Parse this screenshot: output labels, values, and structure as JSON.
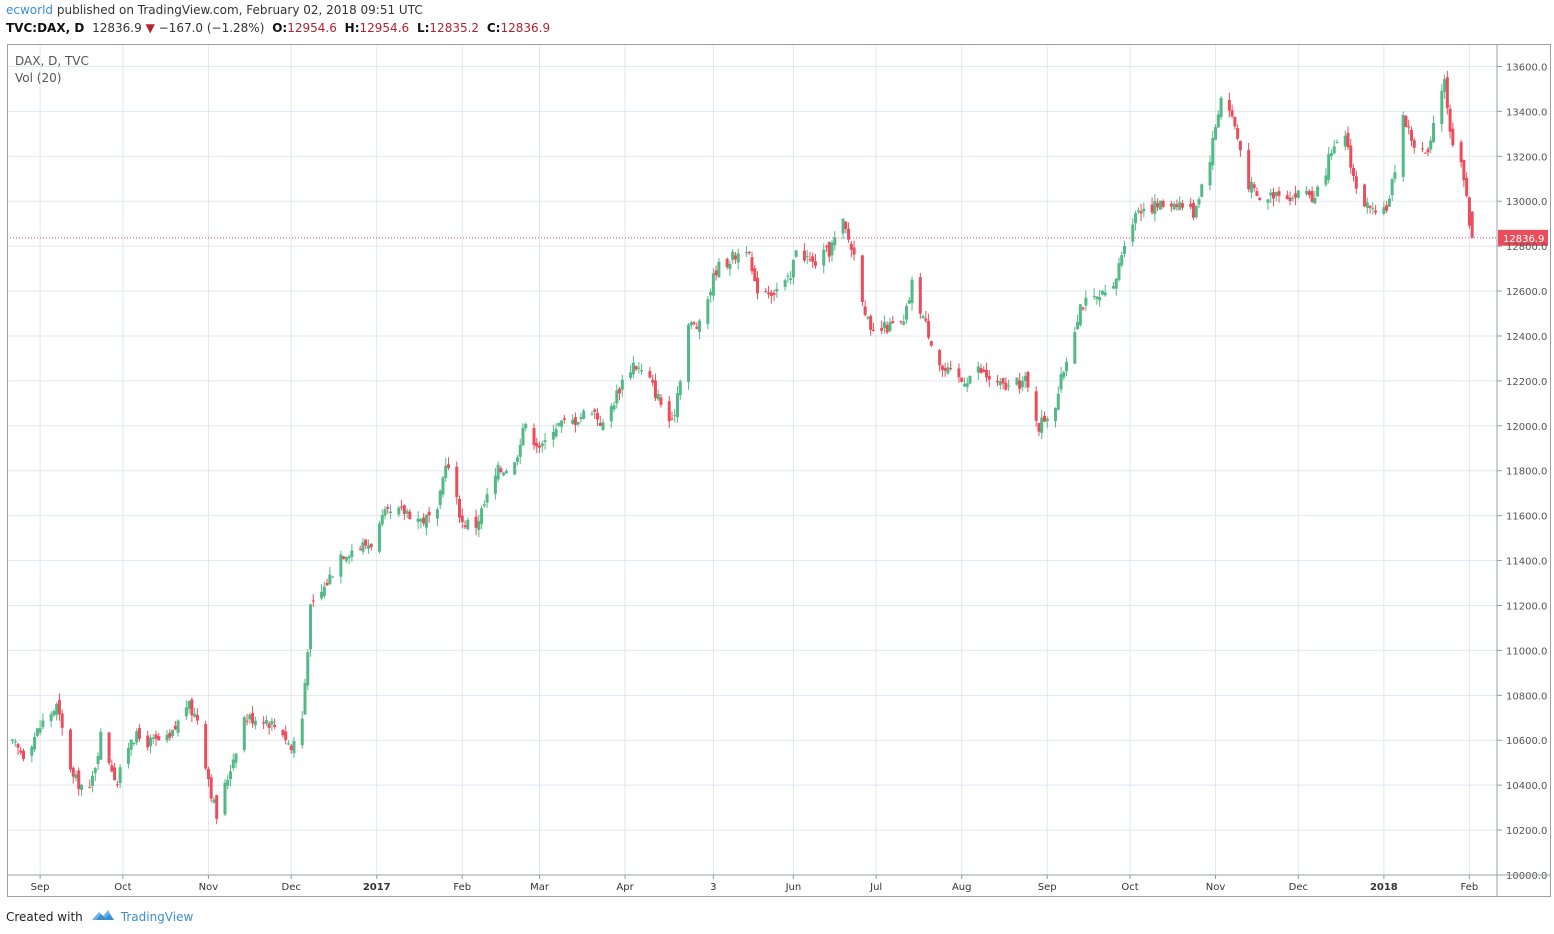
{
  "header": {
    "author": "ecworld",
    "published_text": "published on TradingView.com, February 02, 2018 09:51 UTC"
  },
  "symbol_line": {
    "symbol": "TVC:DAX, D",
    "last": "12836.9",
    "change": "−167.0 (−1.28%)",
    "o_label": "O:",
    "o_value": "12954.6",
    "h_label": "H:",
    "h_value": "12954.6",
    "l_label": "L:",
    "l_value": "12835.2",
    "c_label": "C:",
    "c_value": "12836.9"
  },
  "legend": {
    "series_label": "DAX, D, TVC",
    "volume_label": "Vol (20)"
  },
  "price_tag": "12836.9",
  "footer": {
    "created_with": "Created with",
    "brand": "TradingView"
  },
  "colors": {
    "up": "#53b987",
    "down": "#eb4d5c",
    "grid": "#e0e8f0",
    "axis_text": "#555555",
    "price_line": "#eb4d5c",
    "brand": "#3a8fd1"
  },
  "chart_data": {
    "type": "candlestick",
    "title": "",
    "xlabel": "",
    "ylabel": "",
    "ylim": [
      10000,
      13700
    ],
    "y_ticks": [
      "13600.0",
      "13400.0",
      "13200.0",
      "13000.0",
      "12800.0",
      "12600.0",
      "12400.0",
      "12200.0",
      "12000.0",
      "11800.0",
      "11600.0",
      "11400.0",
      "11200.0",
      "11000.0",
      "10800.0",
      "10600.0",
      "10400.0",
      "10200.0",
      "10000.0"
    ],
    "x_ticks": [
      {
        "label": "Sep",
        "date": "2016-09-01"
      },
      {
        "label": "Oct",
        "date": "2016-10-01"
      },
      {
        "label": "Nov",
        "date": "2016-11-01"
      },
      {
        "label": "Dec",
        "date": "2016-12-01"
      },
      {
        "label": "2017",
        "date": "2017-01-01",
        "bold": true
      },
      {
        "label": "Feb",
        "date": "2017-02-01"
      },
      {
        "label": "Mar",
        "date": "2017-03-01"
      },
      {
        "label": "Apr",
        "date": "2017-04-01"
      },
      {
        "label": "3",
        "date": "2017-05-03"
      },
      {
        "label": "Jun",
        "date": "2017-06-01"
      },
      {
        "label": "Jul",
        "date": "2017-07-01"
      },
      {
        "label": "Aug",
        "date": "2017-08-01"
      },
      {
        "label": "Sep",
        "date": "2017-09-01"
      },
      {
        "label": "Oct",
        "date": "2017-10-01"
      },
      {
        "label": "Nov",
        "date": "2017-11-01"
      },
      {
        "label": "Dec",
        "date": "2017-12-01"
      },
      {
        "label": "2018",
        "date": "2018-01-01",
        "bold": true
      },
      {
        "label": "Feb",
        "date": "2018-02-01"
      }
    ],
    "x_range": [
      "2016-08-20",
      "2018-02-11"
    ],
    "last_price": 12836.9,
    "grid": true,
    "close_path": [
      [
        "2016-08-22",
        10580
      ],
      [
        "2016-08-26",
        10540
      ],
      [
        "2016-09-02",
        10680
      ],
      [
        "2016-09-07",
        10750
      ],
      [
        "2016-09-13",
        10430
      ],
      [
        "2016-09-19",
        10370
      ],
      [
        "2016-09-23",
        10620
      ],
      [
        "2016-09-29",
        10410
      ],
      [
        "2016-10-04",
        10620
      ],
      [
        "2016-10-11",
        10590
      ],
      [
        "2016-10-18",
        10600
      ],
      [
        "2016-10-24",
        10760
      ],
      [
        "2016-10-28",
        10700
      ],
      [
        "2016-11-02",
        10370
      ],
      [
        "2016-11-04",
        10260
      ],
      [
        "2016-11-09",
        10480
      ],
      [
        "2016-11-14",
        10700
      ],
      [
        "2016-11-21",
        10700
      ],
      [
        "2016-11-28",
        10640
      ],
      [
        "2016-12-01",
        10560
      ],
      [
        "2016-12-05",
        10700
      ],
      [
        "2016-12-08",
        11180
      ],
      [
        "2016-12-13",
        11280
      ],
      [
        "2016-12-19",
        11430
      ],
      [
        "2016-12-23",
        11450
      ],
      [
        "2016-12-30",
        11480
      ],
      [
        "2017-01-04",
        11600
      ],
      [
        "2017-01-12",
        11620
      ],
      [
        "2017-01-17",
        11580
      ],
      [
        "2017-01-23",
        11600
      ],
      [
        "2017-01-26",
        11850
      ],
      [
        "2017-02-01",
        11570
      ],
      [
        "2017-02-06",
        11560
      ],
      [
        "2017-02-14",
        11800
      ],
      [
        "2017-02-20",
        11830
      ],
      [
        "2017-02-23",
        12000
      ],
      [
        "2017-03-02",
        11900
      ],
      [
        "2017-03-06",
        12000
      ],
      [
        "2017-03-13",
        12020
      ],
      [
        "2017-03-20",
        12080
      ],
      [
        "2017-03-24",
        12000
      ],
      [
        "2017-03-31",
        12200
      ],
      [
        "2017-04-04",
        12280
      ],
      [
        "2017-04-10",
        12200
      ],
      [
        "2017-04-18",
        12000
      ],
      [
        "2017-04-24",
        12450
      ],
      [
        "2017-04-28",
        12440
      ],
      [
        "2017-05-04",
        12700
      ],
      [
        "2017-05-10",
        12750
      ],
      [
        "2017-05-15",
        12800
      ],
      [
        "2017-05-18",
        12620
      ],
      [
        "2017-05-25",
        12600
      ],
      [
        "2017-05-31",
        12650
      ],
      [
        "2017-06-02",
        12800
      ],
      [
        "2017-06-08",
        12720
      ],
      [
        "2017-06-14",
        12780
      ],
      [
        "2017-06-19",
        12900
      ],
      [
        "2017-06-23",
        12760
      ],
      [
        "2017-06-29",
        12400
      ],
      [
        "2017-07-05",
        12440
      ],
      [
        "2017-07-11",
        12450
      ],
      [
        "2017-07-14",
        12630
      ],
      [
        "2017-07-19",
        12450
      ],
      [
        "2017-07-25",
        12250
      ],
      [
        "2017-08-01",
        12200
      ],
      [
        "2017-08-07",
        12250
      ],
      [
        "2017-08-14",
        12180
      ],
      [
        "2017-08-18",
        12170
      ],
      [
        "2017-08-24",
        12200
      ],
      [
        "2017-08-29",
        12000
      ],
      [
        "2017-09-04",
        12100
      ],
      [
        "2017-09-08",
        12300
      ],
      [
        "2017-09-13",
        12540
      ],
      [
        "2017-09-19",
        12560
      ],
      [
        "2017-09-25",
        12600
      ],
      [
        "2017-09-29",
        12830
      ],
      [
        "2017-10-04",
        12970
      ],
      [
        "2017-10-11",
        12980
      ],
      [
        "2017-10-18",
        13000
      ],
      [
        "2017-10-24",
        12950
      ],
      [
        "2017-10-30",
        13200
      ],
      [
        "2017-11-03",
        13470
      ],
      [
        "2017-11-07",
        13380
      ],
      [
        "2017-11-13",
        13080
      ],
      [
        "2017-11-17",
        13000
      ],
      [
        "2017-11-24",
        13050
      ],
      [
        "2017-11-29",
        13020
      ],
      [
        "2017-12-04",
        13050
      ],
      [
        "2017-12-07",
        13000
      ],
      [
        "2017-12-12",
        13180
      ],
      [
        "2017-12-18",
        13300
      ],
      [
        "2017-12-22",
        13050
      ],
      [
        "2017-12-29",
        12920
      ],
      [
        "2018-01-03",
        13000
      ],
      [
        "2018-01-08",
        13380
      ],
      [
        "2018-01-12",
        13250
      ],
      [
        "2018-01-17",
        13200
      ],
      [
        "2018-01-23",
        13560
      ],
      [
        "2018-01-25",
        13300
      ],
      [
        "2018-01-29",
        13200
      ],
      [
        "2018-01-31",
        13000
      ],
      [
        "2018-02-02",
        12836.9
      ]
    ]
  }
}
